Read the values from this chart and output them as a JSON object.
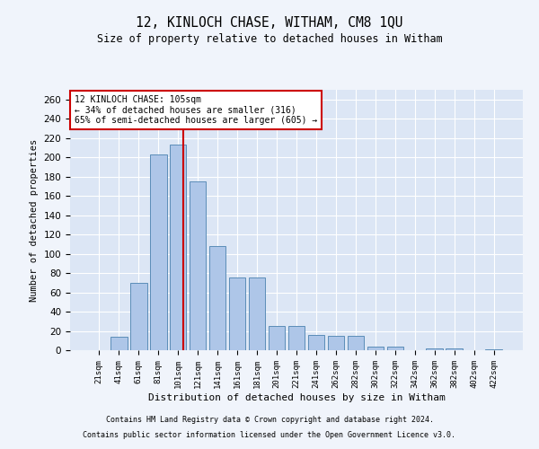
{
  "title": "12, KINLOCH CHASE, WITHAM, CM8 1QU",
  "subtitle": "Size of property relative to detached houses in Witham",
  "xlabel": "Distribution of detached houses by size in Witham",
  "ylabel": "Number of detached properties",
  "bins": [
    "21sqm",
    "41sqm",
    "61sqm",
    "81sqm",
    "101sqm",
    "121sqm",
    "141sqm",
    "161sqm",
    "181sqm",
    "201sqm",
    "221sqm",
    "241sqm",
    "262sqm",
    "282sqm",
    "302sqm",
    "322sqm",
    "342sqm",
    "362sqm",
    "382sqm",
    "402sqm",
    "422sqm"
  ],
  "values": [
    0,
    14,
    70,
    203,
    213,
    175,
    108,
    75,
    75,
    25,
    25,
    16,
    15,
    15,
    4,
    4,
    0,
    2,
    2,
    0,
    1
  ],
  "bar_color": "#aec6e8",
  "bar_edge_color": "#5b8db8",
  "vline_color": "#cc0000",
  "annotation_line1": "12 KINLOCH CHASE: 105sqm",
  "annotation_line2": "← 34% of detached houses are smaller (316)",
  "annotation_line3": "65% of semi-detached houses are larger (605) →",
  "annotation_box_color": "#ffffff",
  "annotation_box_edge": "#cc0000",
  "ylim": [
    0,
    270
  ],
  "yticks": [
    0,
    20,
    40,
    60,
    80,
    100,
    120,
    140,
    160,
    180,
    200,
    220,
    240,
    260
  ],
  "bg_color": "#dce6f5",
  "grid_color": "#ffffff",
  "fig_bg_color": "#f0f4fb",
  "footer1": "Contains HM Land Registry data © Crown copyright and database right 2024.",
  "footer2": "Contains public sector information licensed under the Open Government Licence v3.0."
}
